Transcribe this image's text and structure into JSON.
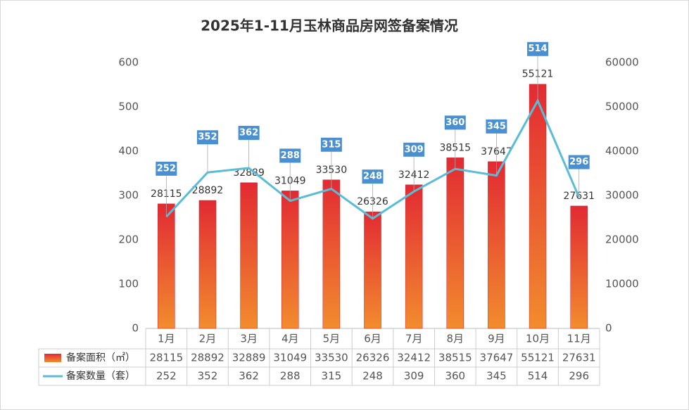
{
  "chart_data": {
    "type": "bar",
    "title": "2025年1-11月玉林商品房网签备案情况",
    "categories": [
      "1月",
      "2月",
      "3月",
      "4月",
      "5月",
      "6月",
      "7月",
      "8月",
      "9月",
      "10月",
      "11月"
    ],
    "series": [
      {
        "name": "备案面积（㎡）",
        "type": "bar",
        "axis": "y2",
        "colors": [
          "#e22a33",
          "#f28c2e"
        ],
        "values": [
          28115,
          28892,
          32889,
          31049,
          33530,
          26326,
          32412,
          38515,
          37647,
          55121,
          27631
        ]
      },
      {
        "name": "备案数量（套）",
        "type": "line",
        "color": "#5bbcd6",
        "label_color": "#4a90d0",
        "values": [
          252,
          352,
          362,
          288,
          315,
          248,
          309,
          360,
          345,
          514,
          296
        ]
      }
    ],
    "ylim": [
      0,
      600
    ],
    "yticks": [
      0,
      100,
      200,
      300,
      400,
      500,
      600
    ],
    "y2lim": [
      0,
      60000
    ],
    "y2ticks": [
      0,
      10000,
      20000,
      30000,
      40000,
      50000,
      60000
    ],
    "grid": false,
    "data_table": true
  }
}
